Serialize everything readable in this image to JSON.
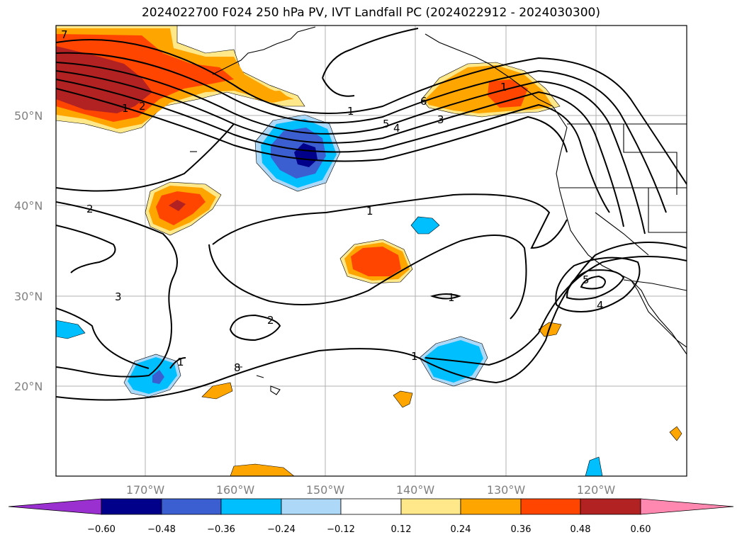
{
  "title": "2024022700 F024 250 hPa PV, IVT Landfall PC (2024022912 - 2024030300)",
  "lat_labels": [
    "50°N",
    "40°N",
    "30°N",
    "20°N"
  ],
  "lon_labels": [
    "170°W",
    "160°W",
    "150°W",
    "140°W",
    "130°W",
    "120°W"
  ],
  "colorbar": {
    "ticks": [
      "−0.60",
      "−0.48",
      "−0.36",
      "−0.24",
      "−0.12",
      "0.12",
      "0.24",
      "0.36",
      "0.48",
      "0.60"
    ],
    "colors": {
      "under": "#9b30d0",
      "c1": "#00008b",
      "c2": "#3b5fd0",
      "c3": "#00bfff",
      "c4": "#add8f7",
      "c5": "#ffffff",
      "c6": "#ffe88a",
      "c7": "#ffa500",
      "c8": "#ff4500",
      "c9": "#b22222",
      "over": "#ff88b0"
    }
  },
  "contour_labels": [
    "7",
    "1",
    "2",
    "1",
    "5",
    "4",
    "6",
    "3",
    "2",
    "1",
    "3",
    "2",
    "1",
    "1",
    "1",
    "5",
    "4",
    "8",
    "1"
  ]
}
